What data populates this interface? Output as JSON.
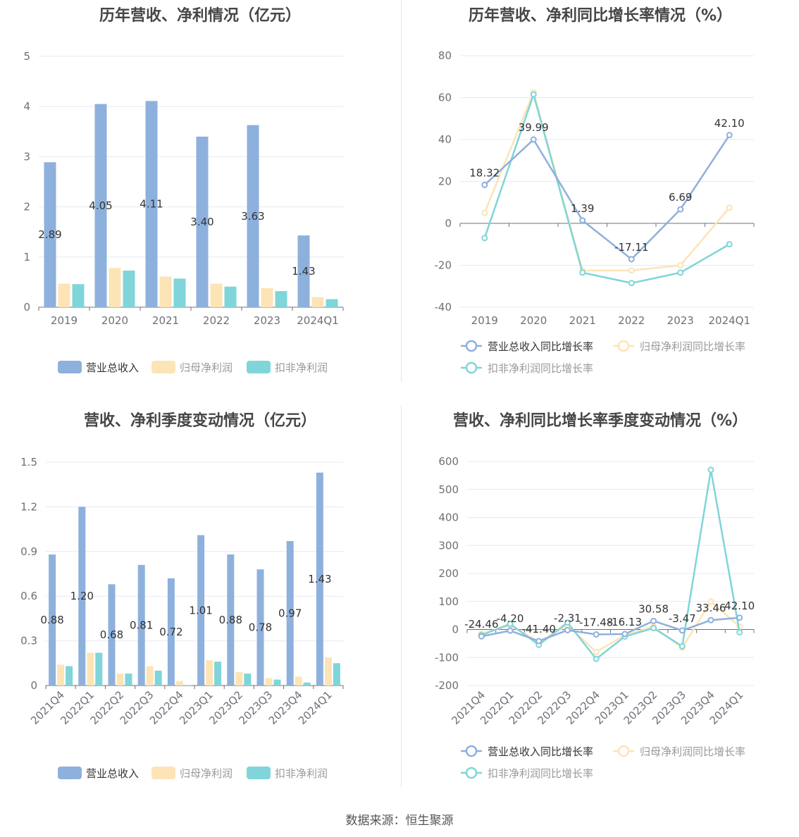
{
  "source": "数据来源：恒生聚源",
  "colors": {
    "revenue": "#8eb0dc",
    "net": "#fde4b6",
    "deducted": "#7fd5d9",
    "grid": "#e6e9f2",
    "axis": "#6e7079",
    "label": "#333333"
  },
  "chart_data": [
    {
      "type": "bar",
      "title": "历年营收、净利情况（亿元）",
      "categories": [
        "2019",
        "2020",
        "2021",
        "2022",
        "2023",
        "2024Q1"
      ],
      "ylim": [
        0,
        5
      ],
      "yticks": [
        "0",
        "1",
        "2",
        "3",
        "4",
        "5"
      ],
      "series": [
        {
          "name": "营业总收入",
          "values": [
            2.89,
            4.05,
            4.11,
            3.4,
            3.63,
            1.43
          ],
          "labels": [
            "2.89",
            "4.05",
            "4.11",
            "3.40",
            "3.63",
            "1.43"
          ]
        },
        {
          "name": "归母净利润",
          "values": [
            0.47,
            0.78,
            0.61,
            0.47,
            0.38,
            0.2
          ]
        },
        {
          "name": "扣非净利润",
          "values": [
            0.46,
            0.73,
            0.57,
            0.41,
            0.32,
            0.16
          ]
        }
      ],
      "legend": "bottom"
    },
    {
      "type": "line",
      "title": "历年营收、净利同比增长率情况（%）",
      "categories": [
        "2019",
        "2020",
        "2021",
        "2022",
        "2023",
        "2024Q1"
      ],
      "ylim": [
        -40,
        80
      ],
      "yticks": [
        "-40",
        "-20",
        "0",
        "20",
        "40",
        "60",
        "80"
      ],
      "series": [
        {
          "name": "营业总收入同比增长率",
          "values": [
            18.32,
            39.99,
            1.39,
            -17.11,
            6.69,
            42.1
          ],
          "labels": [
            "18.32",
            "39.99",
            "1.39",
            "-17.11",
            "6.69",
            "42.10"
          ]
        },
        {
          "name": "归母净利润同比增长率",
          "values": [
            5,
            62.5,
            -22.5,
            -22.5,
            -20,
            7.5
          ]
        },
        {
          "name": "扣非净利润同比增长率",
          "values": [
            -7,
            61.5,
            -23.5,
            -28.5,
            -23.5,
            -10
          ]
        }
      ],
      "legend": "bottom"
    },
    {
      "type": "bar",
      "title": "营收、净利季度变动情况（亿元）",
      "categories": [
        "2021Q4",
        "2022Q1",
        "2022Q2",
        "2022Q3",
        "2022Q4",
        "2023Q1",
        "2023Q2",
        "2023Q3",
        "2023Q4",
        "2024Q1"
      ],
      "ylim": [
        0,
        1.5
      ],
      "yticks": [
        "0",
        "0.3",
        "0.6",
        "0.9",
        "1.2",
        "1.5"
      ],
      "series": [
        {
          "name": "营业总收入",
          "values": [
            0.88,
            1.2,
            0.68,
            0.81,
            0.72,
            1.01,
            0.88,
            0.78,
            0.97,
            1.43
          ],
          "labels": [
            "0.88",
            "1.20",
            "0.68",
            "0.81",
            "0.72",
            "1.01",
            "0.88",
            "0.78",
            "0.97",
            "1.43"
          ]
        },
        {
          "name": "归母净利润",
          "values": [
            0.14,
            0.22,
            0.08,
            0.13,
            0.03,
            0.17,
            0.09,
            0.05,
            0.06,
            0.19
          ]
        },
        {
          "name": "扣非净利润",
          "values": [
            0.13,
            0.22,
            0.08,
            0.1,
            0.003,
            0.16,
            0.08,
            0.04,
            0.02,
            0.15
          ]
        }
      ],
      "legend": "bottom"
    },
    {
      "type": "line",
      "title": "营收、净利同比增长率季度变动情况（%）",
      "categories": [
        "2021Q4",
        "2022Q1",
        "2022Q2",
        "2022Q3",
        "2022Q4",
        "2023Q1",
        "2023Q2",
        "2023Q3",
        "2023Q4",
        "2024Q1"
      ],
      "ylim": [
        -200,
        600
      ],
      "yticks": [
        "-200",
        "-100",
        "0",
        "100",
        "200",
        "300",
        "400",
        "500",
        "600"
      ],
      "series": [
        {
          "name": "营业总收入同比增长率",
          "values": [
            -24.46,
            -4.2,
            -41.4,
            -2.31,
            -17.48,
            -16.13,
            30.58,
            -3.47,
            33.46,
            42.1
          ],
          "labels": [
            "-24.46",
            "-4.20",
            "-41.40",
            "-2.31",
            "-17.48",
            "-16.13",
            "30.58",
            "-3.47",
            "33.46",
            "42.10"
          ]
        },
        {
          "name": "归母净利润同比增长率",
          "values": [
            -15,
            15,
            -45,
            15,
            -80,
            -20,
            10,
            -65,
            100,
            10
          ]
        },
        {
          "name": "扣非净利润同比增长率",
          "values": [
            -20,
            20,
            -55,
            25,
            -105,
            -25,
            5,
            -60,
            570,
            -10
          ]
        }
      ],
      "legend": "bottom"
    }
  ]
}
